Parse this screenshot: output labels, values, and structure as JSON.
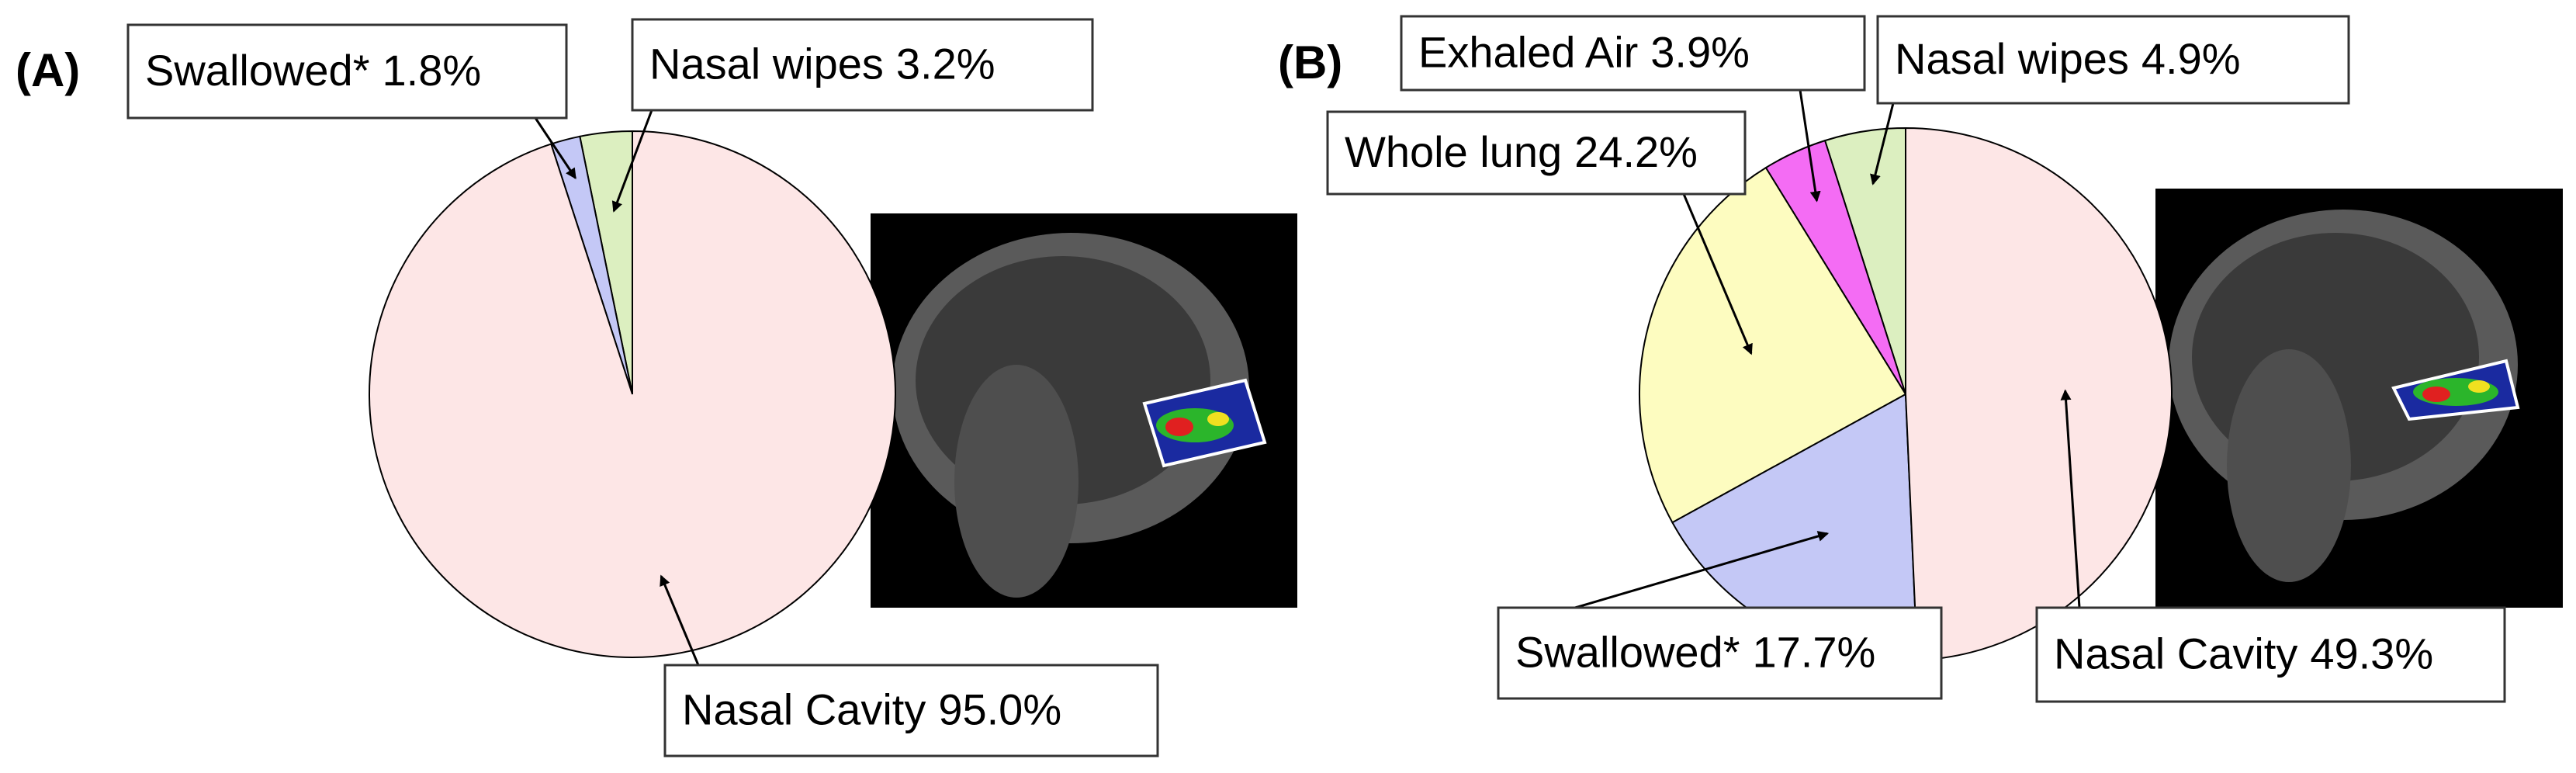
{
  "chart_data": [
    {
      "type": "pie",
      "title": "(A)",
      "categories": [
        "Nasal wipes",
        "Swallowed*",
        "Nasal Cavity"
      ],
      "values": [
        3.2,
        1.8,
        95.0
      ],
      "value_labels": [
        "3.2%",
        "1.8%",
        "95.0%"
      ],
      "colors": [
        "#dcefc0",
        "#c4c8f6",
        "#fde6e6"
      ]
    },
    {
      "type": "pie",
      "title": "(B)",
      "categories": [
        "Nasal wipes",
        "Exhaled Air",
        "Whole lung",
        "Swallowed*",
        "Nasal Cavity"
      ],
      "values": [
        4.9,
        3.9,
        24.2,
        17.7,
        49.3
      ],
      "value_labels": [
        "4.9%",
        "3.9%",
        "24.2%",
        "17.7%",
        "49.3%"
      ],
      "colors": [
        "#dcefc0",
        "#f46cf4",
        "#fdfcc0",
        "#c4c8f6",
        "#fde6e6"
      ]
    }
  ]
}
